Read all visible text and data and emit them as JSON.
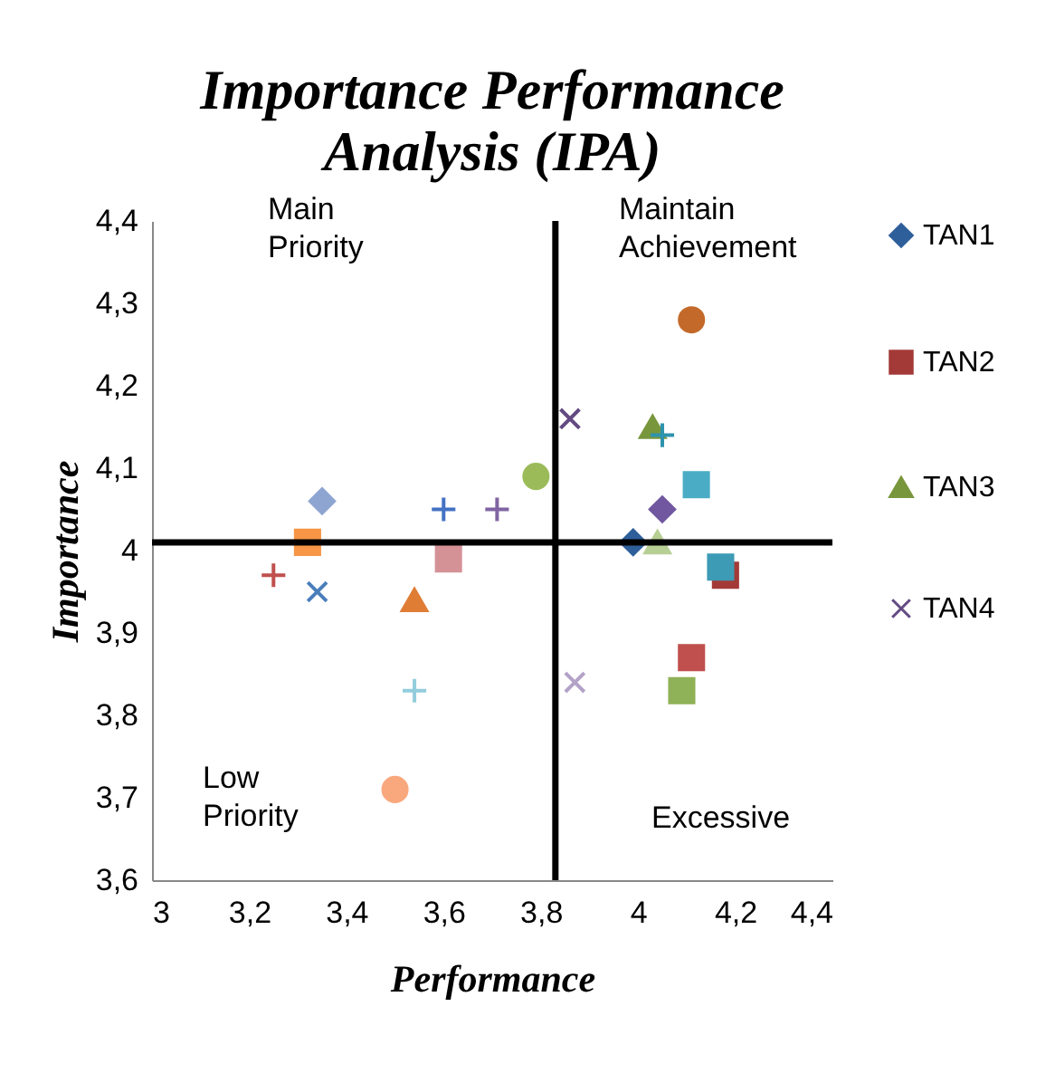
{
  "chart_data": {
    "type": "scatter",
    "title": "Importance Performance Analysis (IPA)",
    "xlabel": "Performance",
    "ylabel": "Importance",
    "xlim": [
      3,
      4.4
    ],
    "xticks": [
      3,
      {
        "value": 3.2,
        "label": "3,2"
      },
      {
        "value": 3.4,
        "label": "3,4"
      },
      {
        "value": 3.6,
        "label": "3,6"
      },
      {
        "value": 3.8,
        "label": "3,8"
      },
      4,
      {
        "value": 4.2,
        "label": "4,2"
      },
      {
        "value": 4.4,
        "label": "4,4"
      }
    ],
    "ylim": [
      3.6,
      4.4
    ],
    "yticks": [
      {
        "value": 3.6,
        "label": "3,6"
      },
      {
        "value": 3.7,
        "label": "3,7"
      },
      {
        "value": 3.8,
        "label": "3,8"
      },
      {
        "value": 3.9,
        "label": "3,9"
      },
      4,
      {
        "value": 4.1,
        "label": "4,1"
      },
      {
        "value": 4.2,
        "label": "4,2"
      },
      {
        "value": 4.3,
        "label": "4,3"
      },
      {
        "value": 4.4,
        "label": "4,4"
      }
    ],
    "grid": false,
    "legend": "right",
    "ref_lines": [
      {
        "axis": "x",
        "value": 3.83,
        "color": "#000000"
      },
      {
        "axis": "y",
        "value": 4.01,
        "color": "#000000"
      }
    ],
    "annotations": [
      "Main Priority",
      "Maintain Achievement",
      "Low Priority",
      "Excessive"
    ],
    "series": [
      {
        "name": "TAN1",
        "color": "#2e5f9a",
        "marker": "diamond",
        "x": [
          3.99
        ],
        "values": [
          4.01
        ]
      },
      {
        "name": "TAN2",
        "color": "#a33a37",
        "marker": "square",
        "x": [
          4.18
        ],
        "values": [
          3.97
        ]
      },
      {
        "name": "TAN3",
        "color": "#78963c",
        "marker": "triangle",
        "x": [
          4.03
        ],
        "values": [
          4.15
        ]
      },
      {
        "name": "TAN4",
        "color": "#634a82",
        "marker": "x",
        "x": [
          3.86
        ],
        "values": [
          4.16
        ]
      },
      {
        "color": "#2e93ad",
        "marker": "cross",
        "x": [
          4.05
        ],
        "values": [
          4.14
        ]
      },
      {
        "color": "#c36a2a",
        "marker": "circle",
        "x": [
          4.11
        ],
        "values": [
          4.28
        ]
      },
      {
        "color": "#4bacc6",
        "marker": "square",
        "x": [
          4.12
        ],
        "values": [
          4.08
        ]
      },
      {
        "color": "#7156a0",
        "marker": "diamond",
        "x": [
          4.05
        ],
        "values": [
          4.05
        ]
      },
      {
        "color": "#b7cf94",
        "marker": "triangle",
        "x": [
          4.04
        ],
        "values": [
          4.01
        ]
      },
      {
        "color": "#3d9bb5",
        "marker": "square",
        "x": [
          4.17
        ],
        "values": [
          3.98
        ]
      },
      {
        "color": "#c0504d",
        "marker": "square",
        "x": [
          4.11
        ],
        "values": [
          3.87
        ]
      },
      {
        "color": "#8fb157",
        "marker": "square",
        "x": [
          4.09
        ],
        "values": [
          3.83
        ]
      },
      {
        "color": "#b3a2c7",
        "marker": "x",
        "x": [
          3.87
        ],
        "values": [
          3.84
        ]
      },
      {
        "color": "#9bbb59",
        "marker": "circle",
        "x": [
          3.79
        ],
        "values": [
          4.09
        ]
      },
      {
        "color": "#8064a2",
        "marker": "cross",
        "x": [
          3.71
        ],
        "values": [
          4.05
        ]
      },
      {
        "color": "#4472c4",
        "marker": "cross",
        "x": [
          3.6
        ],
        "values": [
          4.05
        ]
      },
      {
        "color": "#d49297",
        "marker": "square",
        "x": [
          3.61
        ],
        "values": [
          3.99
        ]
      },
      {
        "color": "#e07d35",
        "marker": "triangle",
        "x": [
          3.54
        ],
        "values": [
          3.94
        ]
      },
      {
        "color": "#93cddd",
        "marker": "cross",
        "x": [
          3.54
        ],
        "values": [
          3.83
        ]
      },
      {
        "color": "#f9a87e",
        "marker": "circle",
        "x": [
          3.5
        ],
        "values": [
          3.71
        ]
      },
      {
        "color": "#8ea5d1",
        "marker": "diamond",
        "x": [
          3.35
        ],
        "values": [
          4.06
        ]
      },
      {
        "color": "#f79646",
        "marker": "square",
        "x": [
          3.32
        ],
        "values": [
          4.01
        ]
      },
      {
        "color": "#4a7ebb",
        "marker": "x",
        "x": [
          3.34
        ],
        "values": [
          3.95
        ]
      },
      {
        "color": "#c0504d",
        "marker": "cross",
        "x": [
          3.25
        ],
        "values": [
          3.97
        ]
      }
    ]
  }
}
